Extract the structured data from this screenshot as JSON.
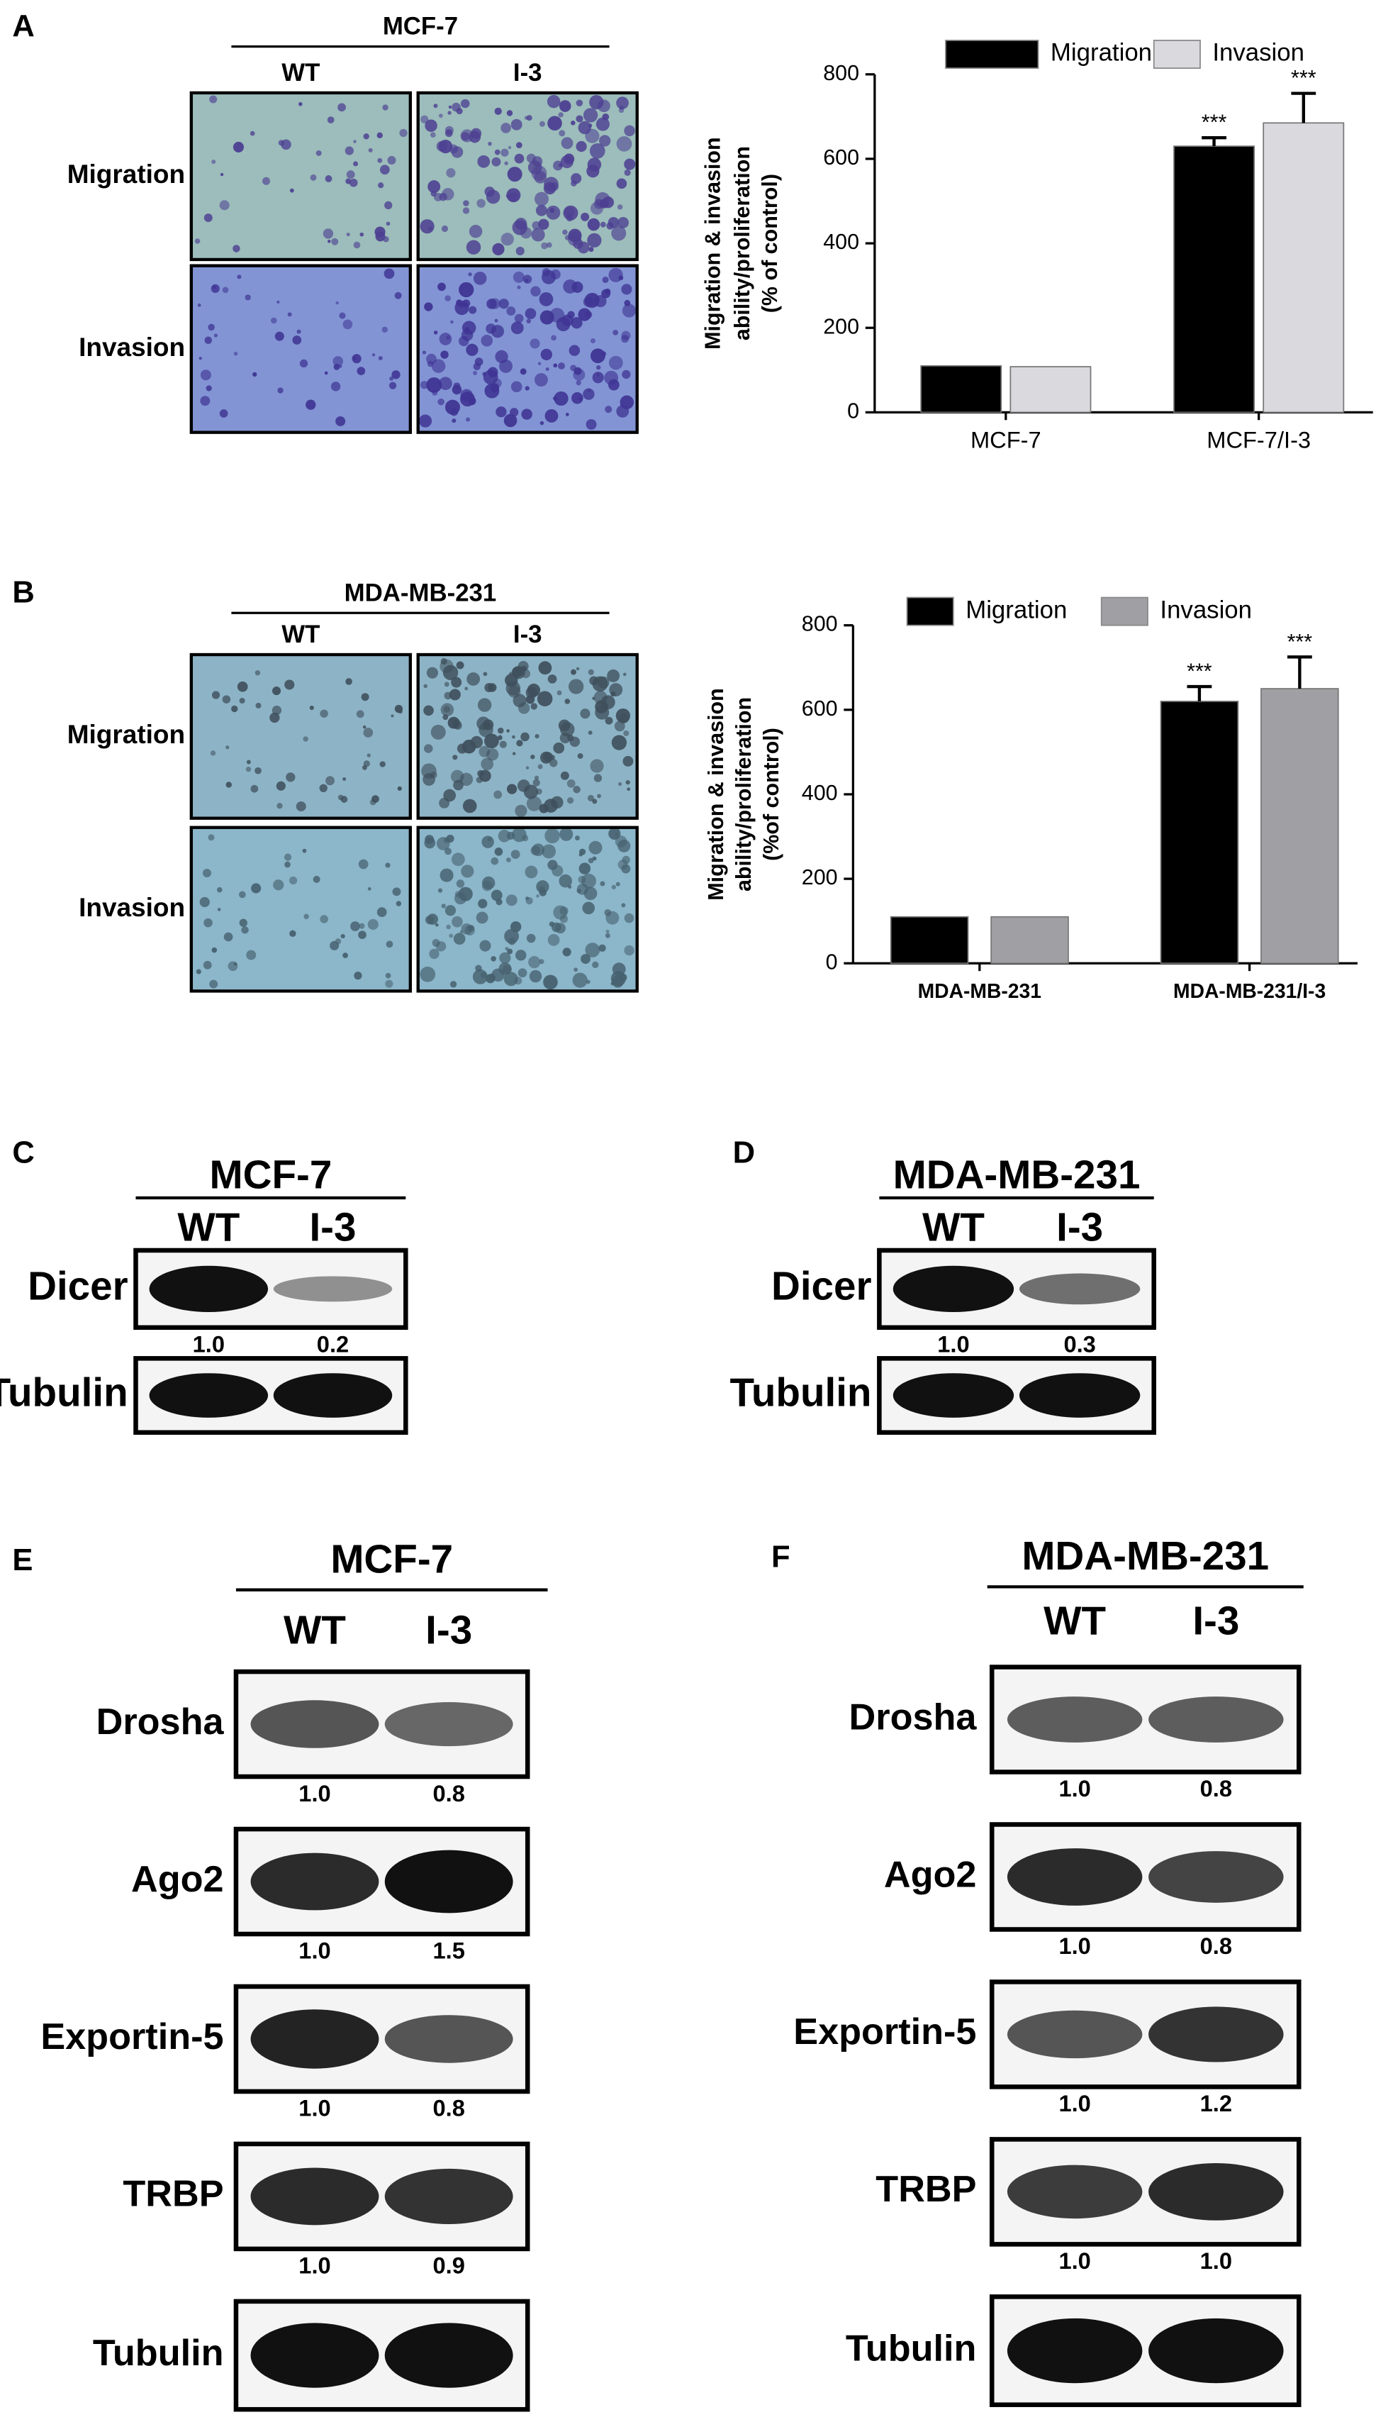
{
  "micrographs": [
    {
      "letter": "A",
      "title": "MCF-7",
      "columns": [
        "WT",
        "I-3"
      ],
      "rows": [
        "Migration",
        "Invasion"
      ]
    },
    {
      "letter": "B",
      "title": "MDA-MB-231",
      "columns": [
        "WT",
        "I-3"
      ],
      "rows": [
        "Migration",
        "Invasion"
      ]
    }
  ],
  "chart_data": [
    {
      "type": "bar",
      "y_label": [
        "Migration & invasion",
        "ability/proliferation",
        "(% of control)"
      ],
      "categories": [
        "MCF-7",
        "MCF-7/I-3"
      ],
      "series": [
        {
          "name": "Migration",
          "color": "#000000",
          "values": [
            110,
            630
          ],
          "errors": [
            null,
            20
          ],
          "annotations": [
            null,
            "***"
          ]
        },
        {
          "name": "Invasion",
          "color": "#d9d9de",
          "values": [
            108,
            685
          ],
          "errors": [
            null,
            70
          ],
          "annotations": [
            null,
            "***"
          ]
        }
      ],
      "ylim": [
        0,
        800
      ],
      "yticks": [
        0,
        200,
        400,
        600,
        800
      ]
    },
    {
      "type": "bar",
      "y_label": [
        "Migration & invasion",
        "ability/proliferation",
        "(%of control)"
      ],
      "categories": [
        "MDA-MB-231",
        "MDA-MB-231/I-3"
      ],
      "series": [
        {
          "name": "Migration",
          "color": "#000000",
          "values": [
            110,
            620
          ],
          "errors": [
            null,
            35
          ],
          "annotations": [
            null,
            "***"
          ]
        },
        {
          "name": "Invasion",
          "color": "#a0a0a4",
          "values": [
            110,
            650
          ],
          "errors": [
            null,
            75
          ],
          "annotations": [
            null,
            "***"
          ]
        }
      ],
      "ylim": [
        0,
        800
      ],
      "yticks": [
        0,
        200,
        400,
        600,
        800
      ]
    }
  ],
  "blots": [
    {
      "letter": "C",
      "title": "MCF-7",
      "lanes": [
        "WT",
        "I-3"
      ],
      "rows": [
        {
          "label": "Dicer",
          "quant": [
            "1.0",
            "0.2"
          ]
        },
        {
          "label": "Tubulin"
        }
      ]
    },
    {
      "letter": "D",
      "title": "MDA-MB-231",
      "lanes": [
        "WT",
        "I-3"
      ],
      "rows": [
        {
          "label": "Dicer",
          "quant": [
            "1.0",
            "0.3"
          ]
        },
        {
          "label": "Tubulin"
        }
      ]
    },
    {
      "letter": "E",
      "title": "MCF-7",
      "lanes": [
        "WT",
        "I-3"
      ],
      "rows": [
        {
          "label": "Drosha",
          "quant": [
            "1.0",
            "0.8"
          ]
        },
        {
          "label": "Ago2",
          "quant": [
            "1.0",
            "1.5"
          ]
        },
        {
          "label": "Exportin-5",
          "quant": [
            "1.0",
            "0.8"
          ]
        },
        {
          "label": "TRBP",
          "quant": [
            "1.0",
            "0.9"
          ]
        },
        {
          "label": "Tubulin"
        }
      ]
    },
    {
      "letter": "F",
      "title": "MDA-MB-231",
      "lanes": [
        "WT",
        "I-3"
      ],
      "rows": [
        {
          "label": "Drosha",
          "quant": [
            "1.0",
            "0.8"
          ]
        },
        {
          "label": "Ago2",
          "quant": [
            "1.0",
            "0.8"
          ]
        },
        {
          "label": "Exportin-5",
          "quant": [
            "1.0",
            "1.2"
          ]
        },
        {
          "label": "TRBP",
          "quant": [
            "1.0",
            "1.0"
          ]
        },
        {
          "label": "Tubulin"
        }
      ]
    }
  ]
}
